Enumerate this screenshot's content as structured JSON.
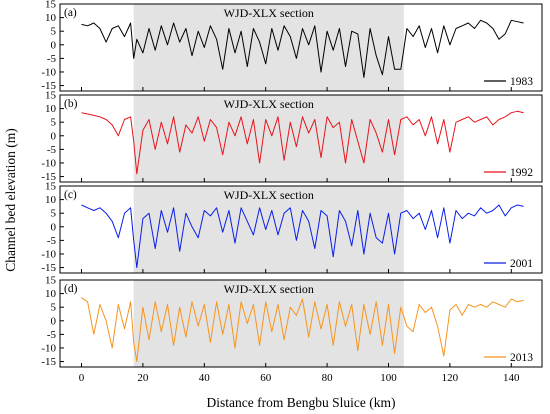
{
  "chart_data": {
    "type": "line",
    "xlabel": "Distance from Bengbu Sluice (km)",
    "ylabel": "Channel bed elevation (m)",
    "xlim": [
      -7,
      150
    ],
    "xticks": [
      0,
      20,
      40,
      60,
      80,
      100,
      120,
      140
    ],
    "ylim": [
      -17,
      15
    ],
    "yticks": [
      15,
      10,
      5,
      0,
      -5,
      -10,
      -15
    ],
    "shaded_region": {
      "label": "WJD-XLX section",
      "x_start": 17,
      "x_end": 105,
      "color": "#e3e3e3"
    },
    "panels": [
      {
        "panel_label": "(a)",
        "series_name": "1983",
        "color": "#000000",
        "x": [
          0,
          2,
          4,
          6,
          8,
          10,
          12,
          14,
          16,
          17,
          18,
          20,
          22,
          24,
          26,
          28,
          30,
          32,
          34,
          36,
          38,
          40,
          42,
          44,
          46,
          48,
          50,
          52,
          54,
          56,
          58,
          60,
          62,
          64,
          66,
          68,
          70,
          72,
          74,
          76,
          78,
          80,
          82,
          84,
          86,
          88,
          90,
          92,
          94,
          96,
          98,
          100,
          102,
          104,
          106,
          108,
          110,
          112,
          114,
          116,
          118,
          120,
          122,
          124,
          126,
          128,
          130,
          132,
          134,
          136,
          138,
          140,
          142,
          144
        ],
        "y": [
          7.5,
          7,
          8,
          6,
          1,
          6,
          7,
          3,
          8,
          -5,
          2,
          -3,
          6,
          -2,
          7,
          0,
          8,
          1,
          6,
          -4,
          5,
          -1,
          7,
          2,
          -9,
          6,
          -3,
          5,
          -8,
          6,
          1,
          -7,
          6,
          -2,
          7,
          3,
          -5,
          6,
          0,
          7,
          -10,
          5,
          -2,
          6,
          -8,
          5,
          4,
          -12,
          6,
          -4,
          -11,
          3,
          -9,
          -9,
          6,
          3,
          7,
          -1,
          6,
          -3,
          7,
          0,
          6,
          7,
          8,
          6,
          9,
          8,
          6,
          2,
          4,
          9,
          8.5,
          8
        ]
      },
      {
        "panel_label": "(b)",
        "series_name": "1992",
        "color": "#e8141c",
        "x": [
          0,
          2,
          4,
          6,
          8,
          10,
          12,
          14,
          16,
          17,
          18,
          20,
          22,
          24,
          26,
          28,
          30,
          32,
          34,
          36,
          38,
          40,
          42,
          44,
          46,
          48,
          50,
          52,
          54,
          56,
          58,
          60,
          62,
          64,
          66,
          68,
          70,
          72,
          74,
          76,
          78,
          80,
          82,
          84,
          86,
          88,
          90,
          92,
          94,
          96,
          98,
          100,
          102,
          104,
          106,
          108,
          110,
          112,
          114,
          116,
          118,
          120,
          122,
          124,
          126,
          128,
          130,
          132,
          134,
          136,
          138,
          140,
          142,
          144
        ],
        "y": [
          8.5,
          8,
          7.5,
          7,
          6,
          4,
          0,
          6,
          7,
          -2,
          -14,
          2,
          6,
          -5,
          5,
          -3,
          7,
          -6,
          4,
          1,
          7,
          -2,
          6,
          3,
          -7,
          5,
          0,
          7,
          -3,
          6,
          -10,
          6,
          0,
          7,
          -9,
          5,
          -4,
          7,
          1,
          6,
          -8,
          7,
          3,
          5,
          -10,
          6,
          -2,
          -10,
          6,
          1,
          -6,
          6,
          -7,
          6,
          7,
          4,
          6,
          0,
          7,
          -3,
          6,
          -6,
          5,
          6,
          7,
          5,
          6,
          7,
          4,
          6,
          7,
          8.5,
          9,
          8.5
        ]
      },
      {
        "panel_label": "(c)",
        "series_name": "2001",
        "color": "#0a1ee8",
        "x": [
          0,
          2,
          4,
          6,
          8,
          10,
          12,
          14,
          16,
          17,
          18,
          20,
          22,
          24,
          26,
          28,
          30,
          32,
          34,
          36,
          38,
          40,
          42,
          44,
          46,
          48,
          50,
          52,
          54,
          56,
          58,
          60,
          62,
          64,
          66,
          68,
          70,
          72,
          74,
          76,
          78,
          80,
          82,
          84,
          86,
          88,
          90,
          92,
          94,
          96,
          98,
          100,
          102,
          104,
          106,
          108,
          110,
          112,
          114,
          116,
          118,
          120,
          122,
          124,
          126,
          128,
          130,
          132,
          134,
          136,
          138,
          140,
          142,
          144
        ],
        "y": [
          8,
          7,
          6,
          7,
          5,
          2,
          -4,
          5,
          7,
          -5,
          -15,
          3,
          5,
          -8,
          6,
          -2,
          7,
          -9,
          5,
          0,
          -4,
          6,
          4,
          7,
          -2,
          6,
          -6,
          7,
          2,
          -3,
          7,
          -1,
          6,
          -3,
          5,
          7,
          -5,
          6,
          2,
          -8,
          6,
          4,
          -11,
          6,
          2,
          -7,
          6,
          -10,
          5,
          -4,
          -6,
          5,
          -10,
          5,
          6,
          3,
          5,
          -1,
          6,
          -4,
          7,
          -6,
          6,
          3,
          5,
          4,
          7,
          5,
          6,
          8,
          4,
          7,
          8,
          7.5
        ]
      },
      {
        "panel_label": "(d)",
        "series_name": "2013",
        "color": "#f7941e",
        "x": [
          0,
          2,
          4,
          6,
          8,
          10,
          12,
          14,
          16,
          17,
          18,
          20,
          22,
          24,
          26,
          28,
          30,
          32,
          34,
          36,
          38,
          40,
          42,
          44,
          46,
          48,
          50,
          52,
          54,
          56,
          58,
          60,
          62,
          64,
          66,
          68,
          70,
          72,
          74,
          76,
          78,
          80,
          82,
          84,
          86,
          88,
          90,
          92,
          94,
          96,
          98,
          100,
          102,
          104,
          106,
          108,
          110,
          112,
          114,
          116,
          118,
          120,
          122,
          124,
          126,
          128,
          130,
          132,
          134,
          136,
          138,
          140,
          142,
          144
        ],
        "y": [
          8.5,
          7,
          -5,
          6,
          0,
          -10,
          6,
          -3,
          7,
          -8,
          -15,
          5,
          -7,
          7,
          -4,
          6,
          -9,
          5,
          -6,
          7,
          -2,
          6,
          -8,
          7,
          -5,
          6,
          -10,
          7,
          -1,
          6,
          -9,
          7,
          -4,
          6,
          -7,
          5,
          2,
          8,
          -6,
          7,
          -3,
          6,
          -9,
          7,
          -2,
          6,
          -11,
          6,
          -5,
          7,
          -9,
          6,
          -12,
          5,
          -2,
          -4,
          6,
          3,
          5,
          -2,
          -13,
          4,
          6,
          2,
          6,
          5,
          6,
          5,
          7,
          6,
          5,
          8,
          7,
          7.5
        ]
      }
    ]
  }
}
